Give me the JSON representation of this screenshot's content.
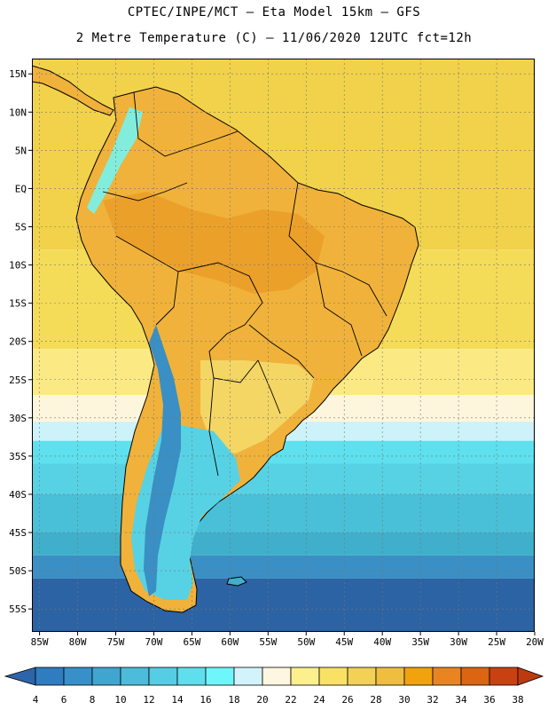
{
  "header": {
    "title_line1": "CPTEC/INPE/MCT –  Eta Model 15km – GFS",
    "title_line2": "2 Metre Temperature (C) – 11/06/2020 12UTC fct=12h"
  },
  "map": {
    "lat_labels": [
      "15N",
      "10N",
      "5N",
      "EQ",
      "5S",
      "10S",
      "15S",
      "20S",
      "25S",
      "30S",
      "35S",
      "40S",
      "45S",
      "50S",
      "55S"
    ],
    "lon_labels": [
      "85W",
      "80W",
      "75W",
      "70W",
      "65W",
      "60W",
      "55W",
      "50W",
      "45W",
      "40W",
      "35W",
      "30W",
      "25W",
      "20W"
    ],
    "lat_range": [
      17,
      -58
    ],
    "lon_range": [
      -86,
      -20
    ],
    "ocean_bands": [
      {
        "lat_top": 17,
        "lat_bottom": -8,
        "value": 28,
        "color": "#f1d24a"
      },
      {
        "lat_top": -8,
        "lat_bottom": -21,
        "value": 26,
        "color": "#f5dc58"
      },
      {
        "lat_top": -21,
        "lat_bottom": -27,
        "value": 24,
        "color": "#fbea84"
      },
      {
        "lat_top": -27,
        "lat_bottom": -30.5,
        "value": 22,
        "color": "#fdf5dc"
      },
      {
        "lat_top": -30.5,
        "lat_bottom": -33,
        "value": 20,
        "color": "#cdf2f9"
      },
      {
        "lat_top": -33,
        "lat_bottom": -36,
        "value": 16,
        "color": "#5ee0ee"
      },
      {
        "lat_top": -36,
        "lat_bottom": -40,
        "value": 14,
        "color": "#57d2e4"
      },
      {
        "lat_top": -40,
        "lat_bottom": -45,
        "value": 12,
        "color": "#49c0d8"
      },
      {
        "lat_top": -45,
        "lat_bottom": -48,
        "value": 10,
        "color": "#3fafcc"
      },
      {
        "lat_top": -48,
        "lat_bottom": -51,
        "value": 8,
        "color": "#3a8fc4"
      },
      {
        "lat_top": -51,
        "lat_bottom": -58,
        "value": 6,
        "color": "#2b63a4"
      }
    ]
  },
  "colorbar": {
    "tick_labels": [
      "4",
      "6",
      "8",
      "10",
      "12",
      "14",
      "16",
      "18",
      "20",
      "22",
      "24",
      "26",
      "28",
      "30",
      "32",
      "34",
      "36",
      "38"
    ],
    "colors": [
      "#2e64a9",
      "#2f7cbf",
      "#3790c8",
      "#40a6d0",
      "#4bbcd9",
      "#55cde3",
      "#5de0ec",
      "#6ef7fa",
      "#d2f3fb",
      "#fdf6e0",
      "#fbef8e",
      "#f9e263",
      "#f2d154",
      "#efbe3e",
      "#f0a30a",
      "#e98520",
      "#dd6411",
      "#c94111",
      "#bd3a10"
    ]
  }
}
